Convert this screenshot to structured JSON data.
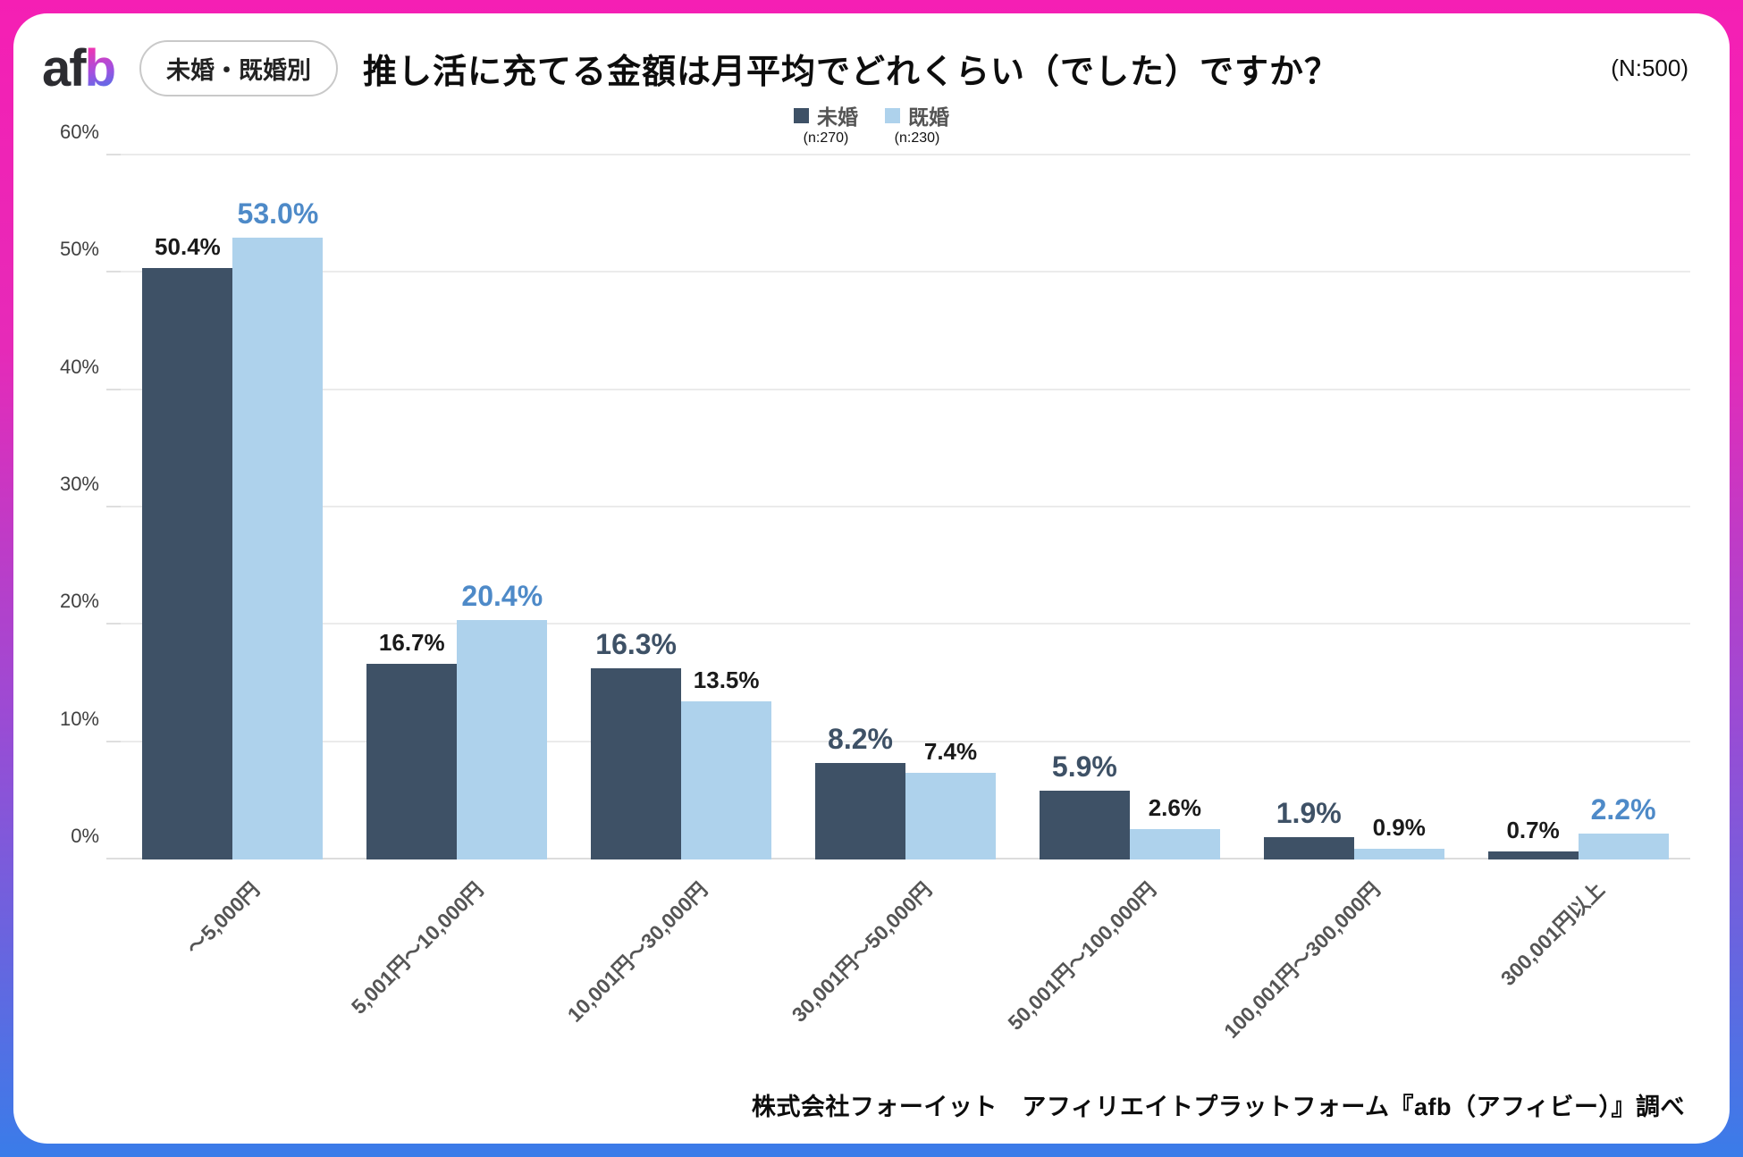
{
  "header": {
    "logo_af": "af",
    "logo_b": "b",
    "badge": "未婚・既婚別",
    "title": "推し活に充てる金額は月平均でどれくらい（でした）ですか？",
    "sample": "(N:500)"
  },
  "legend": [
    {
      "label": "未婚",
      "count": "(n:270)",
      "color": "#3e5166"
    },
    {
      "label": "既婚",
      "count": "(n:230)",
      "color": "#aed2ec"
    }
  ],
  "chart_data": {
    "type": "bar",
    "title": "推し活に充てる金額は月平均でどれくらい（でした）ですか？",
    "categories": [
      "～5,000円",
      "5,001円～10,000円",
      "10,001円～30,000円",
      "30,001円～50,000円",
      "50,001円～100,000円",
      "100,001円～300,000円",
      "300,001円以上"
    ],
    "series": [
      {
        "key": "unmarried",
        "name": "未婚",
        "n_label": "(n:270)",
        "color": "#3e5166",
        "label_color": "#3e5166",
        "values": [
          50.4,
          16.7,
          16.3,
          8.2,
          5.9,
          1.9,
          0.7
        ]
      },
      {
        "key": "married",
        "name": "既婚",
        "n_label": "(n:230)",
        "color": "#aed2ec",
        "label_color": "#4e8ac8",
        "values": [
          53.0,
          20.4,
          13.5,
          7.4,
          2.6,
          0.9,
          2.2
        ]
      }
    ],
    "xlabel": "",
    "ylabel": "",
    "ylim": [
      0,
      60
    ],
    "yticks": [
      0,
      10,
      20,
      30,
      40,
      50,
      60
    ],
    "ytick_suffix": "%",
    "grid": true,
    "legend_position": "top",
    "value_label_format": "0.0%"
  },
  "footer": {
    "source": "株式会社フォーイット　アフィリエイトプラットフォーム『afb（アフィビー）』調べ"
  }
}
